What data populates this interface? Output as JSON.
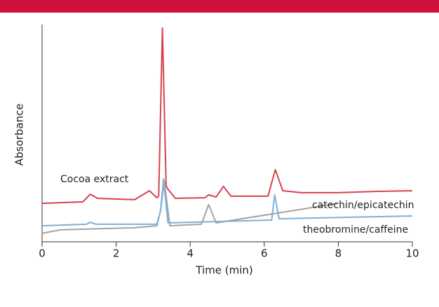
{
  "chart_data": {
    "type": "line",
    "xlabel": "Time (min)",
    "ylabel": "Absorbance",
    "xlim": [
      0,
      10
    ],
    "xticks": [
      0,
      2,
      4,
      6,
      8,
      10
    ],
    "ylim": [
      0,
      100
    ],
    "series": [
      {
        "name": "Cocoa extract",
        "color": "#d9414f",
        "label_color": "#d9263a",
        "x": [
          0,
          1.1,
          1.3,
          1.5,
          2.5,
          2.9,
          3.1,
          3.15,
          3.25,
          3.35,
          3.4,
          3.6,
          4.4,
          4.5,
          4.7,
          4.9,
          5.1,
          6.1,
          6.3,
          6.5,
          7,
          8,
          9,
          10
        ],
        "values": [
          17.7,
          18.4,
          21.9,
          20.0,
          19.4,
          23.5,
          20.3,
          21.0,
          98.4,
          25.8,
          24.2,
          20.0,
          20.3,
          21.6,
          20.6,
          25.5,
          21.0,
          21.0,
          33.2,
          23.5,
          22.6,
          22.6,
          23.2,
          23.5
        ]
      },
      {
        "name": "catechin/epicatechin",
        "color": "#a3a3a3",
        "label_color": "#8a2a8a",
        "x": [
          0,
          0.5,
          2.5,
          3.1,
          3.2,
          3.3,
          3.45,
          4.3,
          4.5,
          4.7,
          8
        ],
        "values": [
          3.9,
          5.5,
          6.5,
          7.4,
          14.5,
          28.1,
          7.4,
          8.1,
          17.1,
          8.7,
          17.7
        ]
      },
      {
        "name": "theobromine/caffeine",
        "color": "#7fb0d8",
        "label_color": "#1f7bbf",
        "x": [
          0,
          1.2,
          1.3,
          1.45,
          3.1,
          3.2,
          3.28,
          3.4,
          6.2,
          6.28,
          6.4,
          10
        ],
        "values": [
          7.4,
          8.1,
          9.0,
          8.1,
          8.1,
          14.5,
          29.0,
          8.7,
          10.0,
          21.6,
          10.6,
          11.9
        ]
      }
    ]
  }
}
